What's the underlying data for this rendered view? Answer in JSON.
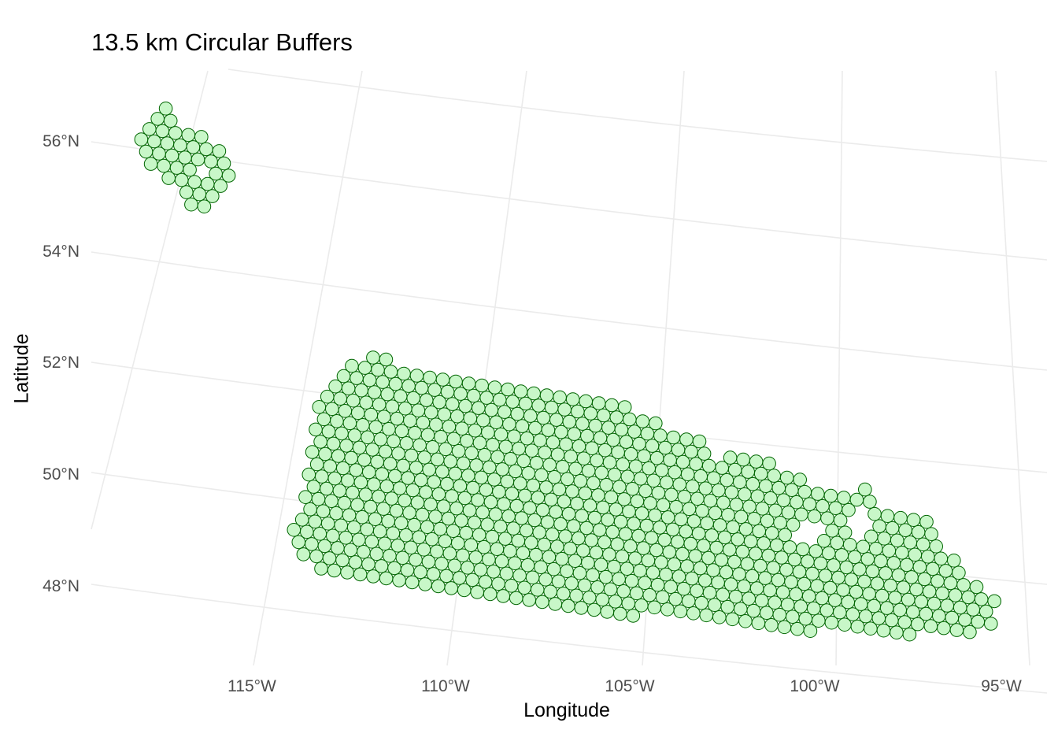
{
  "title": "13.5 km Circular Buffers",
  "x_label": "Longitude",
  "y_label": "Latitude",
  "chart_data": {
    "type": "scatter",
    "subtype": "circular buffers map",
    "x_ticks": [
      "115°W",
      "110°W",
      "105°W",
      "100°W",
      "95°W"
    ],
    "y_ticks": [
      "56°N",
      "54°N",
      "52°N",
      "50°N",
      "48°N"
    ],
    "grid": true,
    "fill_color": "#c8f7c8",
    "stroke_color": "#006400",
    "grid_color": "#ebebeb"
  }
}
